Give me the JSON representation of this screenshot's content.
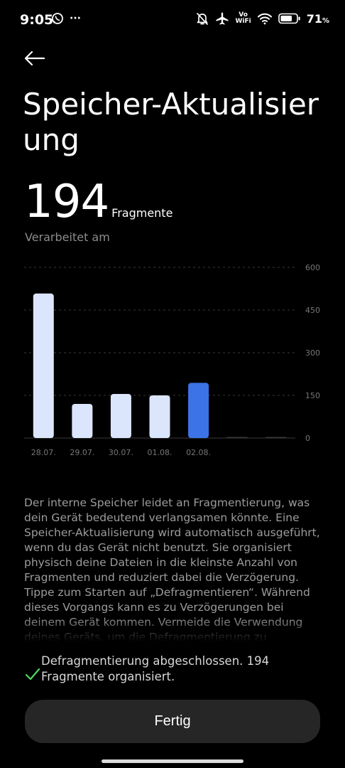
{
  "status_bar": {
    "time": "9:05",
    "overflow": "···",
    "vowifi_top": "Vo",
    "vowifi_bottom": "WiFi",
    "battery_pct": "71",
    "battery_unit": "%",
    "icons": [
      "whatsapp-icon",
      "bell-off-icon",
      "airplane-icon",
      "wifi-icon",
      "battery-icon"
    ]
  },
  "header": {
    "title": "Speicher-Aktualisierung",
    "back_icon": "arrow-left-icon"
  },
  "summary": {
    "count": "194",
    "unit": "Fragmente",
    "processed_label": "Verarbeitet am"
  },
  "chart_data": {
    "type": "bar",
    "categories": [
      "28.07.",
      "29.07.",
      "30.07.",
      "01.08.",
      "02.08.",
      "",
      ""
    ],
    "values": [
      508,
      120,
      155,
      150,
      194,
      0,
      0
    ],
    "highlight_index": 4,
    "yticks": [
      0,
      150,
      300,
      450,
      600
    ],
    "ylim": [
      0,
      600
    ],
    "grid": true,
    "colors": {
      "bar": "#dbe5fb",
      "highlight": "#3c73e6",
      "empty": "#3a3a3a",
      "grid": "#3a3a3a",
      "tick": "#777777"
    }
  },
  "description": "Der interne Speicher leidet an Fragmentierung, was dein Gerät bedeutend verlangsamen könnte. Eine Speicher-Aktualisierung wird automatisch ausgeführt, wenn du das Gerät nicht benutzt. Sie organisiert physisch deine Dateien in die kleinste Anzahl von Fragmenten und reduziert dabei die Verzögerung. Tippe zum Starten auf „Defragmentieren“. Während dieses Vorgangs kann es zu Verzögerungen bei deinem Gerät kommen. Vermeide die Verwendung deines Geräts, um die Defragmentierung zu beschleunigen.",
  "result": {
    "text": "Defragmentierung abgeschlossen. 194 Fragmente organisiert.",
    "icon": "check-icon",
    "color": "#4cd964"
  },
  "actions": {
    "done_label": "Fertig"
  }
}
